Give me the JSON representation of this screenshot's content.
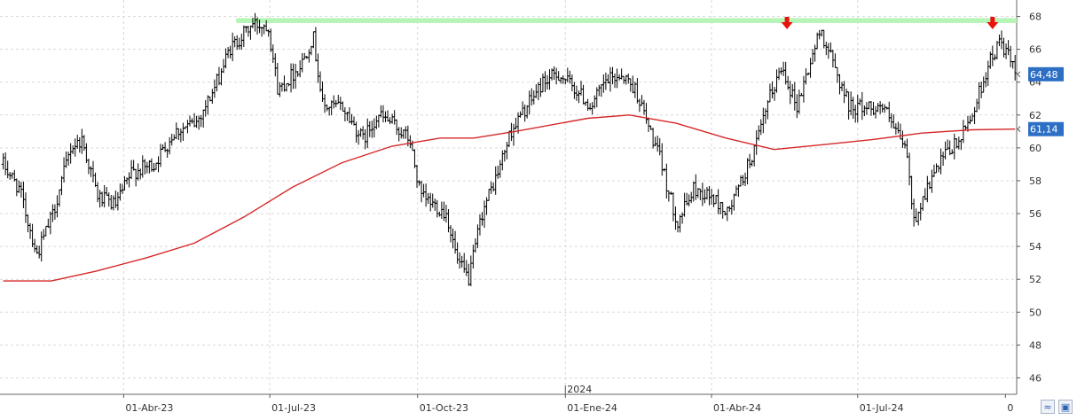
{
  "chart_data": {
    "type": "bar",
    "subtype": "ohlc",
    "y_axis_position": "right",
    "ylim": [
      45,
      69
    ],
    "y_ticks": [
      46,
      48,
      50,
      52,
      54,
      56,
      58,
      60,
      62,
      64,
      66,
      68
    ],
    "x_ticks": [
      "01-Abr-23",
      "01-Jul-23",
      "01-Oct-23",
      "01-Ene-24",
      "01-Abr-24",
      "01-Jul-24",
      "0"
    ],
    "year_marker": "2024",
    "grid": true,
    "price_path": [
      [
        "2023-01-16",
        59.0
      ],
      [
        "2023-01-26",
        57.5
      ],
      [
        "2023-02-06",
        53.5
      ],
      [
        "2023-02-16",
        56.0
      ],
      [
        "2023-02-27",
        60.0
      ],
      [
        "2023-03-06",
        60.5
      ],
      [
        "2023-03-16",
        57.0
      ],
      [
        "2023-03-27",
        56.5
      ],
      [
        "2023-04-06",
        58.5
      ],
      [
        "2023-04-20",
        59.0
      ],
      [
        "2023-05-03",
        61.0
      ],
      [
        "2023-05-16",
        61.5
      ],
      [
        "2023-05-27",
        63.5
      ],
      [
        "2023-06-06",
        66.0
      ],
      [
        "2023-06-20",
        67.5
      ],
      [
        "2023-06-30",
        67.5
      ],
      [
        "2023-07-06",
        63.5
      ],
      [
        "2023-07-20",
        65.0
      ],
      [
        "2023-07-28",
        66.8
      ],
      [
        "2023-08-03",
        62.5
      ],
      [
        "2023-08-15",
        62.5
      ],
      [
        "2023-08-28",
        60.5
      ],
      [
        "2023-09-06",
        62.0
      ],
      [
        "2023-09-15",
        61.5
      ],
      [
        "2023-09-26",
        60.5
      ],
      [
        "2023-10-03",
        57.0
      ],
      [
        "2023-10-12",
        56.5
      ],
      [
        "2023-10-19",
        56.0
      ],
      [
        "2023-10-26",
        53.0
      ],
      [
        "2023-11-02",
        52.0
      ],
      [
        "2023-11-10",
        56.0
      ],
      [
        "2023-11-20",
        58.5
      ],
      [
        "2023-11-28",
        61.0
      ],
      [
        "2023-12-08",
        62.5
      ],
      [
        "2023-12-18",
        64.0
      ],
      [
        "2023-12-28",
        64.5
      ],
      [
        "2024-01-08",
        63.5
      ],
      [
        "2024-01-17",
        62.5
      ],
      [
        "2024-01-26",
        64.0
      ],
      [
        "2024-02-05",
        64.5
      ],
      [
        "2024-02-14",
        63.5
      ],
      [
        "2024-02-21",
        61.5
      ],
      [
        "2024-03-01",
        59.0
      ],
      [
        "2024-03-06",
        57.0
      ],
      [
        "2024-03-11",
        55.5
      ],
      [
        "2024-03-21",
        57.5
      ],
      [
        "2024-04-01",
        57.0
      ],
      [
        "2024-04-11",
        56.0
      ],
      [
        "2024-04-22",
        58.5
      ],
      [
        "2024-04-30",
        60.5
      ],
      [
        "2024-05-07",
        63.0
      ],
      [
        "2024-05-15",
        65.0
      ],
      [
        "2024-05-24",
        62.5
      ],
      [
        "2024-06-04",
        66.0
      ],
      [
        "2024-06-08",
        67.2
      ],
      [
        "2024-06-18",
        64.5
      ],
      [
        "2024-06-26",
        62.5
      ],
      [
        "2024-07-08",
        62.5
      ],
      [
        "2024-07-17",
        62.5
      ],
      [
        "2024-07-24",
        61.0
      ],
      [
        "2024-07-31",
        60.0
      ],
      [
        "2024-08-05",
        55.5
      ],
      [
        "2024-08-13",
        57.5
      ],
      [
        "2024-08-24",
        59.5
      ],
      [
        "2024-09-03",
        60.5
      ],
      [
        "2024-09-12",
        62.5
      ],
      [
        "2024-09-20",
        65.0
      ],
      [
        "2024-09-28",
        66.5
      ],
      [
        "2024-10-03",
        65.5
      ],
      [
        "2024-10-07",
        64.5
      ]
    ],
    "series": [
      {
        "type": "ohlc",
        "color": "#000000",
        "bar_interval_days": 1.4
      },
      {
        "type": "line",
        "color": "#d62828",
        "values": [
          [
            "2023-01-16",
            51.9
          ],
          [
            "2023-02-15",
            51.9
          ],
          [
            "2023-03-15",
            52.5
          ],
          [
            "2023-04-15",
            53.3
          ],
          [
            "2023-05-15",
            54.2
          ],
          [
            "2023-06-15",
            55.8
          ],
          [
            "2023-07-15",
            57.6
          ],
          [
            "2023-08-15",
            59.1
          ],
          [
            "2023-09-15",
            60.1
          ],
          [
            "2023-10-15",
            60.6
          ],
          [
            "2023-11-05",
            60.6
          ],
          [
            "2023-12-01",
            61.0
          ],
          [
            "2024-01-15",
            61.8
          ],
          [
            "2024-02-10",
            62.0
          ],
          [
            "2024-03-10",
            61.5
          ],
          [
            "2024-04-10",
            60.6
          ],
          [
            "2024-05-10",
            59.9
          ],
          [
            "2024-06-10",
            60.2
          ],
          [
            "2024-07-10",
            60.5
          ],
          [
            "2024-08-10",
            60.9
          ],
          [
            "2024-09-10",
            61.1
          ],
          [
            "2024-10-07",
            61.14
          ]
        ]
      }
    ],
    "last_price_label": "64,48",
    "last_price_value": 64.48,
    "ma_label": "61,14",
    "ma_value": 61.14,
    "resistance_band": {
      "from": 67.6,
      "to": 67.9,
      "color": "#b6f5b6",
      "start": "2023-06-10"
    },
    "arrows": [
      {
        "date": "2024-05-18",
        "color": "#e8130c"
      },
      {
        "date": "2024-09-23",
        "color": "#e8130c"
      }
    ],
    "x_start": "2023-01-14",
    "x_end": "2024-10-08"
  }
}
